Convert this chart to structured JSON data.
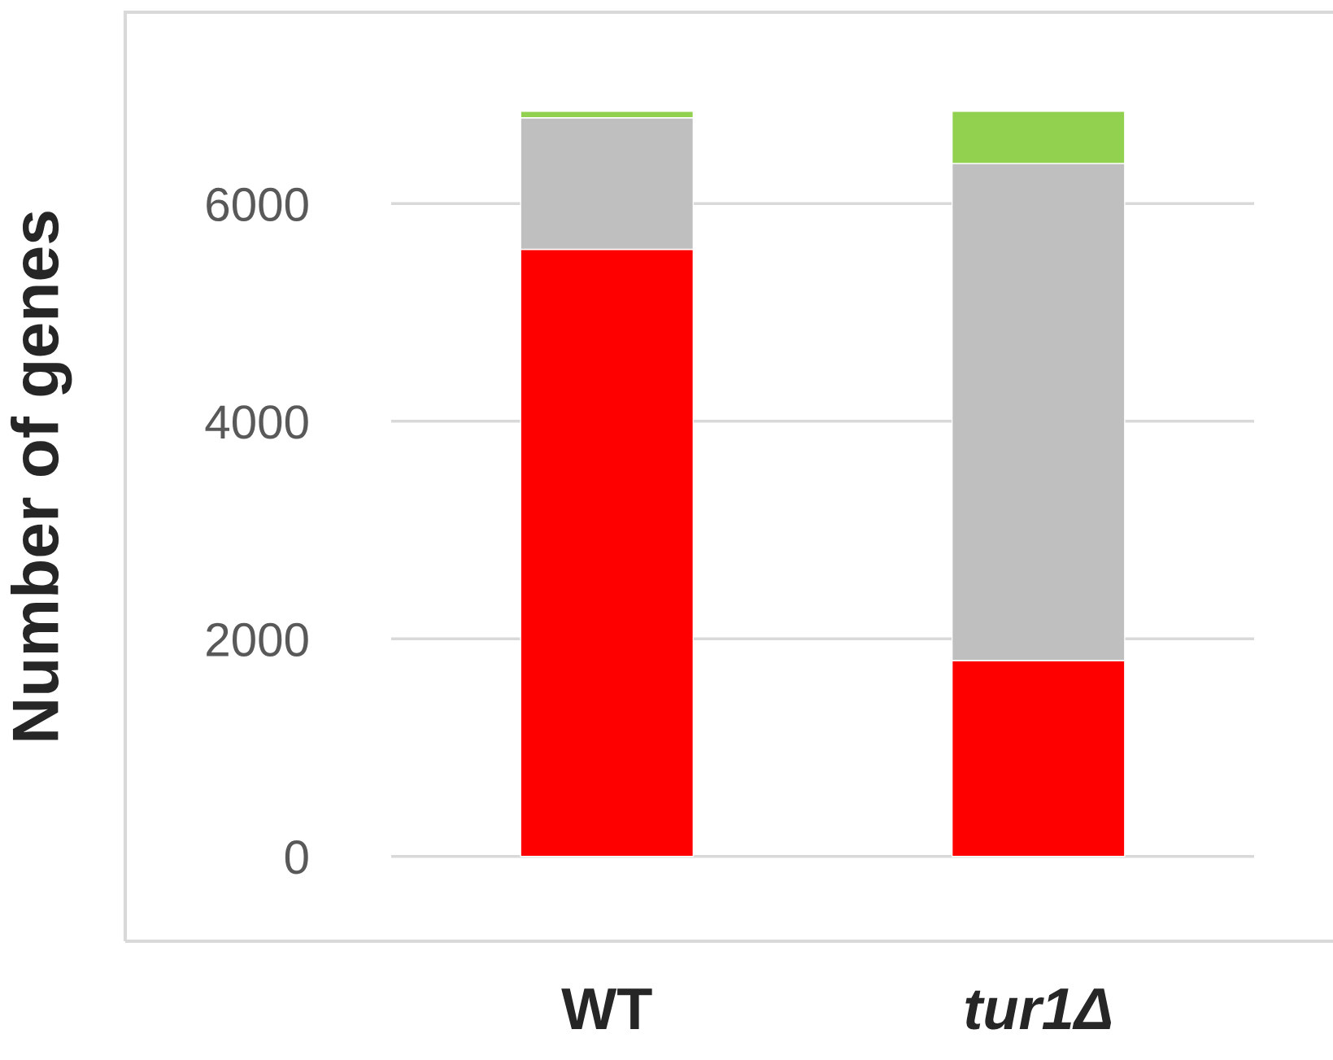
{
  "chart_data": {
    "type": "bar",
    "stacked": true,
    "ylabel": "Number of genes",
    "categories": [
      "WT",
      "tur1Δ"
    ],
    "series": [
      {
        "color": "#ff0000",
        "values": [
          5580,
          1800
        ]
      },
      {
        "color": "#bfbfbf",
        "values": [
          1210,
          4570
        ]
      },
      {
        "color": "#92d050",
        "values": [
          60,
          480
        ]
      }
    ],
    "ylim": [
      -780,
      7760
    ],
    "yticks": [
      0,
      2000,
      4000,
      6000
    ],
    "grid": "y",
    "legend": false
  }
}
